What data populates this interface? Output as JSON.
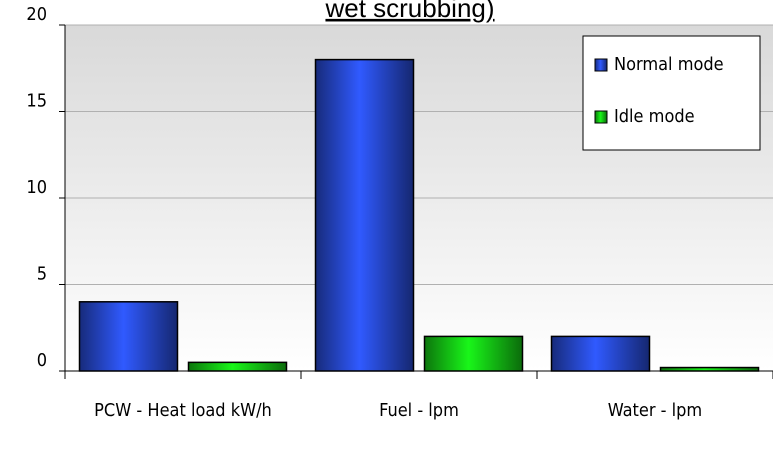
{
  "chart_data": {
    "type": "bar",
    "title": "wet scrubbing)",
    "categories": [
      "PCW - Heat load kW/h",
      "Fuel - lpm",
      "Water - lpm"
    ],
    "series": [
      {
        "name": "Normal mode",
        "color": "#2a4ee0",
        "values": [
          4,
          18,
          2
        ]
      },
      {
        "name": "Idle mode",
        "color": "#16d616",
        "values": [
          0.5,
          2,
          0.2
        ]
      }
    ],
    "ylim": [
      0,
      20
    ],
    "yticks": [
      0,
      5,
      10,
      15,
      20
    ],
    "grid": true,
    "legend": "upper right"
  }
}
